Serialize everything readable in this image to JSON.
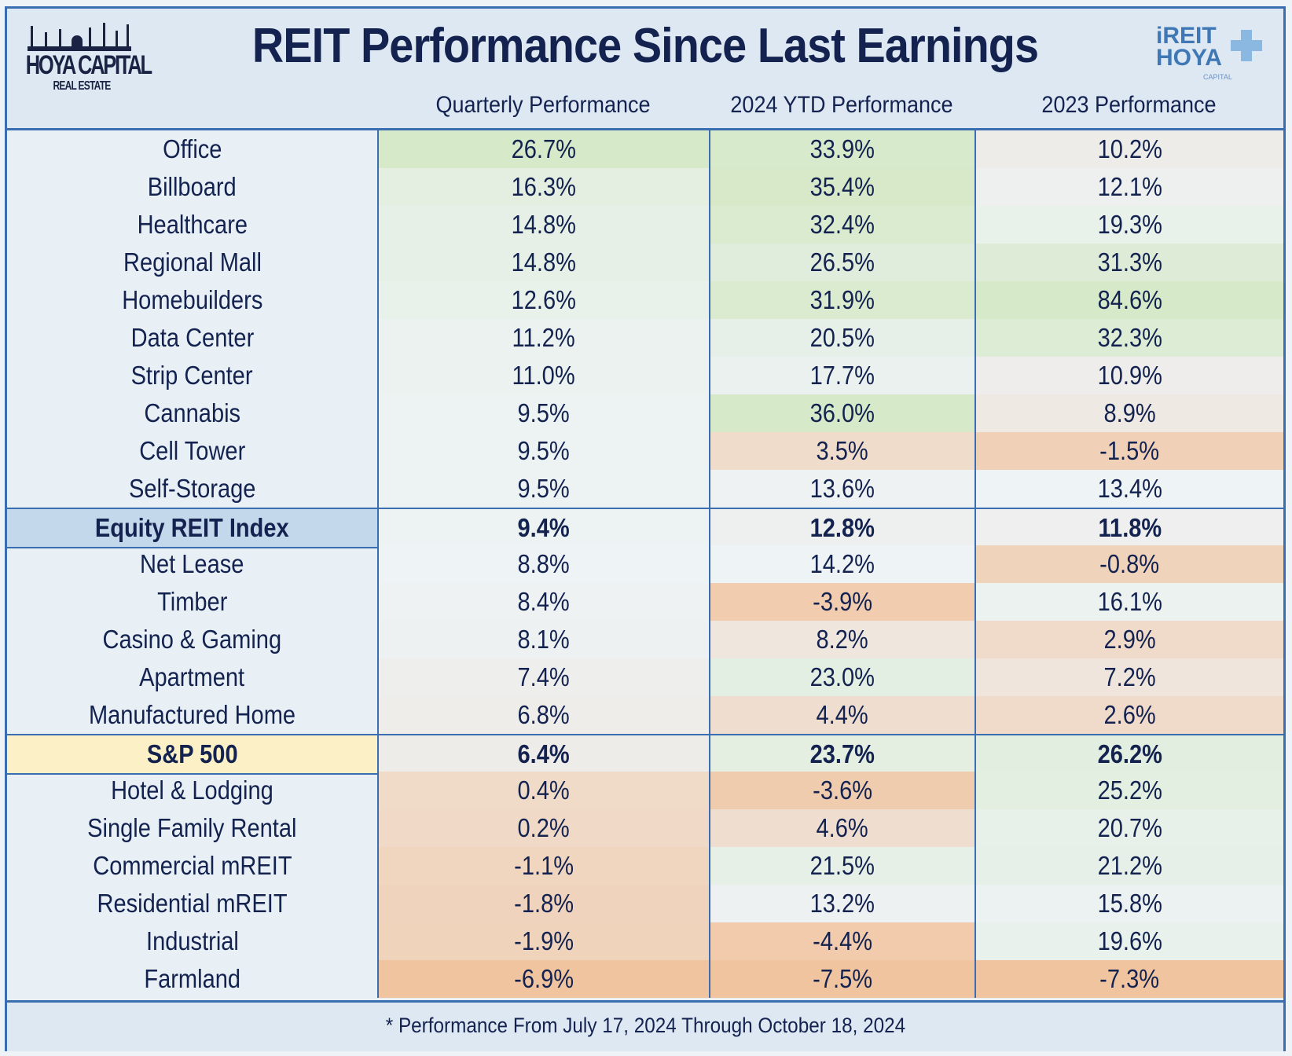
{
  "header": {
    "title": "REIT Performance Since Last Earnings",
    "logo_left": {
      "line1": "HOYA CAPITAL",
      "line2": "REAL ESTATE"
    },
    "logo_right": {
      "line1": "iREIT",
      "line2": "HOYA",
      "line3": "CAPITAL"
    },
    "columns": [
      "Quarterly Performance",
      "2024 YTD Performance",
      "2023 Performance"
    ]
  },
  "colors": {
    "positive": "#d6e9c8",
    "neutral": "#eef3f5",
    "negative": "#f1c4a0",
    "equity_highlight": "#c4d8ec",
    "sp500_highlight": "#fbf0c6",
    "border": "#3a6eb0",
    "text": "#13224f"
  },
  "rows": [
    {
      "name": "Office",
      "q": "26.7%",
      "ytd": "33.9%",
      "y2023": "10.2%"
    },
    {
      "name": "Billboard",
      "q": "16.3%",
      "ytd": "35.4%",
      "y2023": "12.1%"
    },
    {
      "name": "Healthcare",
      "q": "14.8%",
      "ytd": "32.4%",
      "y2023": "19.3%"
    },
    {
      "name": "Regional Mall",
      "q": "14.8%",
      "ytd": "26.5%",
      "y2023": "31.3%"
    },
    {
      "name": "Homebuilders",
      "q": "12.6%",
      "ytd": "31.9%",
      "y2023": "84.6%"
    },
    {
      "name": "Data Center",
      "q": "11.2%",
      "ytd": "20.5%",
      "y2023": "32.3%"
    },
    {
      "name": "Strip Center",
      "q": "11.0%",
      "ytd": "17.7%",
      "y2023": "10.9%"
    },
    {
      "name": "Cannabis",
      "q": "9.5%",
      "ytd": "36.0%",
      "y2023": "8.9%"
    },
    {
      "name": "Cell Tower",
      "q": "9.5%",
      "ytd": "3.5%",
      "y2023": "-1.5%"
    },
    {
      "name": "Self-Storage",
      "q": "9.5%",
      "ytd": "13.6%",
      "y2023": "13.4%"
    },
    {
      "name": "Equity REIT Index",
      "q": "9.4%",
      "ytd": "12.8%",
      "y2023": "11.8%",
      "highlight": "equity"
    },
    {
      "name": "Net Lease",
      "q": "8.8%",
      "ytd": "14.2%",
      "y2023": "-0.8%"
    },
    {
      "name": "Timber",
      "q": "8.4%",
      "ytd": "-3.9%",
      "y2023": "16.1%"
    },
    {
      "name": "Casino & Gaming",
      "q": "8.1%",
      "ytd": "8.2%",
      "y2023": "2.9%"
    },
    {
      "name": "Apartment",
      "q": "7.4%",
      "ytd": "23.0%",
      "y2023": "7.2%"
    },
    {
      "name": "Manufactured Home",
      "q": "6.8%",
      "ytd": "4.4%",
      "y2023": "2.6%"
    },
    {
      "name": "S&P 500",
      "q": "6.4%",
      "ytd": "23.7%",
      "y2023": "26.2%",
      "highlight": "sp500"
    },
    {
      "name": "Hotel & Lodging",
      "q": "0.4%",
      "ytd": "-3.6%",
      "y2023": "25.2%"
    },
    {
      "name": "Single Family Rental",
      "q": "0.2%",
      "ytd": "4.6%",
      "y2023": "20.7%"
    },
    {
      "name": "Commercial mREIT",
      "q": "-1.1%",
      "ytd": "21.5%",
      "y2023": "21.2%"
    },
    {
      "name": "Residential mREIT",
      "q": "-1.8%",
      "ytd": "13.2%",
      "y2023": "15.8%"
    },
    {
      "name": "Industrial",
      "q": "-1.9%",
      "ytd": "-4.4%",
      "y2023": "19.6%"
    },
    {
      "name": "Farmland",
      "q": "-6.9%",
      "ytd": "-7.5%",
      "y2023": "-7.3%"
    }
  ],
  "footer": "* Performance From July 17, 2024 Through October 18, 2024"
}
